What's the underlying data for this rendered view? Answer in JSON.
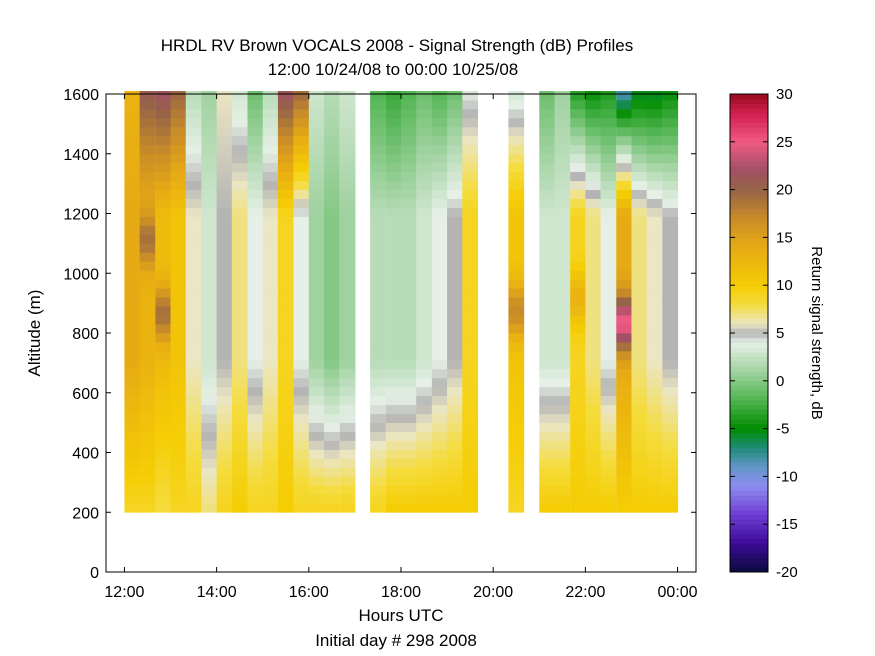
{
  "chart_data": {
    "type": "heatmap",
    "title": "HRDL RV Brown VOCALS 2008 - Signal Strength (dB) Profiles",
    "subtitle": "12:00 10/24/08 to 00:00 10/25/08",
    "xlabel": "Hours UTC",
    "xlabel2": "Initial day # 298  2008",
    "ylabel": "Altitude (m)",
    "colorbar_label": "Return signal strength, dB",
    "x_ticks": [
      {
        "value": 12,
        "label": "12:00"
      },
      {
        "value": 14,
        "label": "14:00"
      },
      {
        "value": 16,
        "label": "16:00"
      },
      {
        "value": 18,
        "label": "18:00"
      },
      {
        "value": 20,
        "label": "20:00"
      },
      {
        "value": 22,
        "label": "22:00"
      },
      {
        "value": 24,
        "label": "00:00"
      }
    ],
    "y_ticks": [
      0,
      200,
      400,
      600,
      800,
      1000,
      1200,
      1400,
      1600
    ],
    "colorbar_ticks": [
      30,
      25,
      20,
      15,
      10,
      5,
      0,
      -5,
      -10,
      -15,
      -20
    ],
    "xlim": [
      11.6,
      24.4
    ],
    "ylim": [
      0,
      1600
    ],
    "clim": [
      -20,
      30
    ],
    "time_bin_hours": 0.3333,
    "altitude_bin_m": 30,
    "colormap_stops": [
      {
        "value": -20,
        "color": "#0a0a3c"
      },
      {
        "value": -17,
        "color": "#3c0a96"
      },
      {
        "value": -14,
        "color": "#6e3cd2"
      },
      {
        "value": -11,
        "color": "#8c8cf0"
      },
      {
        "value": -9,
        "color": "#6496c8"
      },
      {
        "value": -7,
        "color": "#1e8c78"
      },
      {
        "value": -5,
        "color": "#008c00"
      },
      {
        "value": -2,
        "color": "#50b450"
      },
      {
        "value": 1,
        "color": "#a0d2a0"
      },
      {
        "value": 4,
        "color": "#e6f0e6"
      },
      {
        "value": 5,
        "color": "#b4b4b4"
      },
      {
        "value": 6,
        "color": "#ebe6c3"
      },
      {
        "value": 8,
        "color": "#f5dc3c"
      },
      {
        "value": 10,
        "color": "#f5cd05"
      },
      {
        "value": 14,
        "color": "#e6aa14"
      },
      {
        "value": 17,
        "color": "#c88c28"
      },
      {
        "value": 20,
        "color": "#966446"
      },
      {
        "value": 22,
        "color": "#a05064"
      },
      {
        "value": 25,
        "color": "#f05a82"
      },
      {
        "value": 28,
        "color": "#d21e50"
      },
      {
        "value": 30,
        "color": "#960a1e"
      }
    ],
    "profiles": [
      {
        "t": 12.0,
        "base": 14,
        "top": 13,
        "bottom": 9,
        "bump": 0,
        "bumpAt": 0
      },
      {
        "t": 12.33,
        "base": 13,
        "top": 21,
        "bottom": 9,
        "bump": 6,
        "bumpAt": 1100
      },
      {
        "t": 12.67,
        "base": 12,
        "top": 22,
        "bottom": 8,
        "bump": 7,
        "bumpAt": 850
      },
      {
        "t": 13.0,
        "base": 11,
        "top": 20,
        "bottom": 9,
        "bump": 0,
        "bumpAt": 0
      },
      {
        "t": 13.33,
        "base": 6,
        "top": 2,
        "bottom": 9,
        "bump": 0,
        "bumpAt": 0
      },
      {
        "t": 13.67,
        "base": 3,
        "top": 1,
        "bottom": 7,
        "bump": 0,
        "bumpAt": 0
      },
      {
        "t": 14.0,
        "base": 5,
        "top": 6,
        "bottom": 9,
        "bump": 0,
        "bumpAt": 0
      },
      {
        "t": 14.33,
        "base": 7,
        "top": 3,
        "bottom": 10,
        "bump": 0,
        "bumpAt": 0
      },
      {
        "t": 14.67,
        "base": 4,
        "top": -1,
        "bottom": 9,
        "bump": 0,
        "bumpAt": 0
      },
      {
        "t": 15.0,
        "base": 6,
        "top": 2,
        "bottom": 9,
        "bump": 0,
        "bumpAt": 0
      },
      {
        "t": 15.33,
        "base": 9,
        "top": 22,
        "bottom": 10,
        "bump": 0,
        "bumpAt": 0
      },
      {
        "t": 15.67,
        "base": 4,
        "top": 20,
        "bottom": 9,
        "bump": 0,
        "bumpAt": 0
      },
      {
        "t": 16.0,
        "base": 1,
        "top": 3,
        "bottom": 9,
        "bump": 0,
        "bumpAt": 0
      },
      {
        "t": 16.33,
        "base": 0,
        "top": 2,
        "bottom": 9,
        "bump": 0,
        "bumpAt": 0
      },
      {
        "t": 16.67,
        "base": 1,
        "top": 3,
        "bottom": 9,
        "bump": 0,
        "bumpAt": 0
      },
      {
        "t": 17.33,
        "base": 2,
        "top": -2,
        "bottom": 9,
        "bump": 0,
        "bumpAt": 0
      },
      {
        "t": 17.67,
        "base": 2,
        "top": -3,
        "bottom": 10,
        "bump": 0,
        "bumpAt": 0
      },
      {
        "t": 18.0,
        "base": 2,
        "top": -2,
        "bottom": 10,
        "bump": 0,
        "bumpAt": 0
      },
      {
        "t": 18.33,
        "base": 3,
        "top": -1,
        "bottom": 10,
        "bump": 0,
        "bumpAt": 0
      },
      {
        "t": 18.67,
        "base": 4,
        "top": -2,
        "bottom": 10,
        "bump": 0,
        "bumpAt": 0
      },
      {
        "t": 19.0,
        "base": 5,
        "top": -1,
        "bottom": 10,
        "bump": 0,
        "bumpAt": 0
      },
      {
        "t": 19.33,
        "base": 9,
        "top": 4,
        "bottom": 10,
        "bump": 0,
        "bumpAt": 0
      },
      {
        "t": 20.33,
        "base": 11,
        "top": 3,
        "bottom": 9,
        "bump": 6,
        "bumpAt": 860
      },
      {
        "t": 21.0,
        "base": 3,
        "top": -1,
        "bottom": 10,
        "bump": 0,
        "bumpAt": 0
      },
      {
        "t": 21.33,
        "base": 3,
        "top": 1,
        "bottom": 10,
        "bump": 0,
        "bumpAt": 0
      },
      {
        "t": 21.67,
        "base": 9,
        "top": -4,
        "bottom": 10,
        "bump": 4,
        "bumpAt": 900
      },
      {
        "t": 22.0,
        "base": 7,
        "top": -5,
        "bottom": 10,
        "bump": 0,
        "bumpAt": 0
      },
      {
        "t": 22.33,
        "base": 4,
        "top": -4,
        "bottom": 10,
        "bump": 0,
        "bumpAt": 0
      },
      {
        "t": 22.67,
        "base": 14,
        "top": -9,
        "bottom": 10,
        "bump": 11,
        "bumpAt": 820
      },
      {
        "t": 23.0,
        "base": 7,
        "top": -6,
        "bottom": 10,
        "bump": 0,
        "bumpAt": 0
      },
      {
        "t": 23.33,
        "base": 6,
        "top": -6,
        "bottom": 10,
        "bump": 0,
        "bumpAt": 0
      },
      {
        "t": 23.67,
        "base": 5,
        "top": -5,
        "bottom": 10,
        "bump": 0,
        "bumpAt": 0
      }
    ],
    "data_range": {
      "altitude_min": 200,
      "altitude_max": 1600
    },
    "grid": false
  }
}
